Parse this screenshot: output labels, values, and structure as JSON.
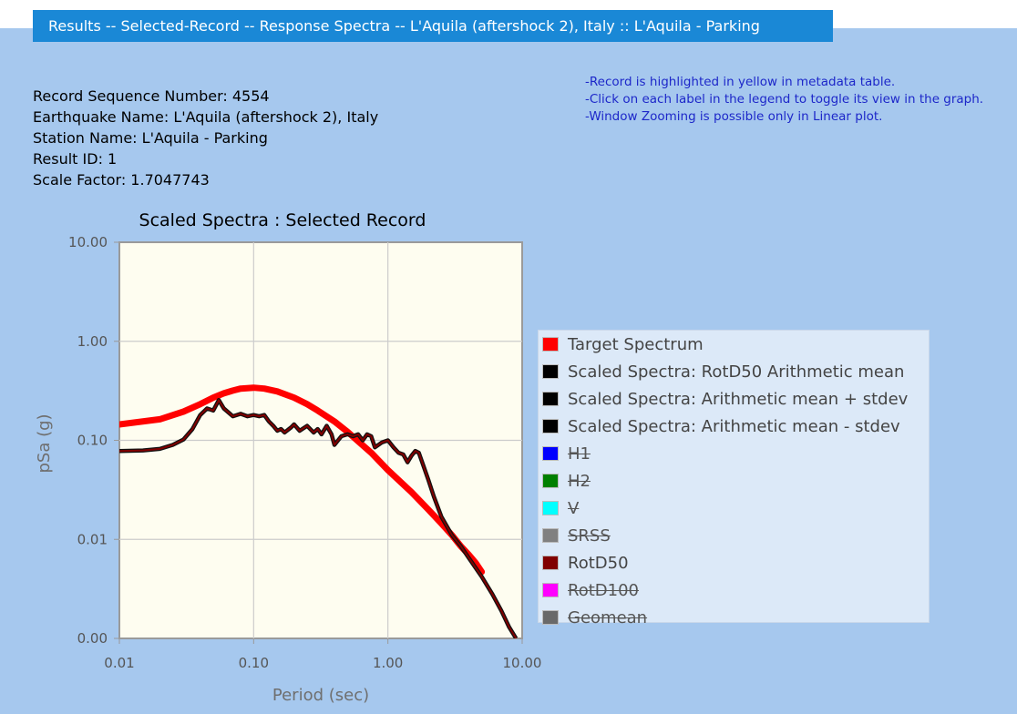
{
  "header": {
    "title": "Results -- Selected-Record -- Response Spectra -- L'Aquila (aftershock 2), Italy :: L'Aquila - Parking"
  },
  "info": [
    "Record Sequence Number: 4554",
    "Earthquake Name: L'Aquila (aftershock 2), Italy",
    "Station Name: L'Aquila - Parking",
    "Result ID: 1",
    "Scale Factor: 1.7047743"
  ],
  "notes": [
    "-Record is highlighted in yellow in metadata table.",
    "-Click on each label in the legend to toggle its view in the graph.",
    "-Window Zooming is possible only in Linear plot."
  ],
  "legend": [
    {
      "label": "Target Spectrum",
      "color": "#ff0000",
      "hidden": false
    },
    {
      "label": "Scaled Spectra: RotD50 Arithmetic mean",
      "color": "#000000",
      "hidden": false
    },
    {
      "label": "Scaled Spectra: Arithmetic mean + stdev",
      "color": "#000000",
      "hidden": false
    },
    {
      "label": "Scaled Spectra: Arithmetic mean - stdev",
      "color": "#000000",
      "hidden": false
    },
    {
      "label": "H1",
      "color": "#0000ff",
      "hidden": true
    },
    {
      "label": "H2",
      "color": "#008000",
      "hidden": true
    },
    {
      "label": "V",
      "color": "#00ffff",
      "hidden": true
    },
    {
      "label": "SRSS",
      "color": "#808080",
      "hidden": true
    },
    {
      "label": "RotD50",
      "color": "#800000",
      "hidden": false
    },
    {
      "label": "RotD100",
      "color": "#ff00ff",
      "hidden": true
    },
    {
      "label": "Geomean",
      "color": "#696969",
      "hidden": true
    }
  ],
  "chart_data": {
    "type": "line",
    "title": "Scaled Spectra : Selected Record",
    "xlabel": "Period (sec)",
    "ylabel": "pSa (g)",
    "x_scale": "log",
    "y_scale": "log",
    "xlim": [
      0.01,
      10
    ],
    "ylim": [
      0.001,
      10
    ],
    "x_ticks": [
      0.01,
      0.1,
      1,
      10
    ],
    "x_tick_labels": [
      "0.01",
      "0.10",
      "1.00",
      "10.00"
    ],
    "y_ticks": [
      0.001,
      0.01,
      0.1,
      1,
      10
    ],
    "y_tick_labels": [
      "0.00",
      "0.01",
      "0.10",
      "1.00",
      "10.00"
    ],
    "grid": true,
    "legend_position": "right",
    "series": [
      {
        "name": "Target Spectrum",
        "color": "#ff0000",
        "x": [
          0.01,
          0.02,
          0.03,
          0.04,
          0.05,
          0.06,
          0.07,
          0.08,
          0.1,
          0.12,
          0.15,
          0.2,
          0.25,
          0.3,
          0.4,
          0.5,
          0.6,
          0.75,
          1.0,
          1.5,
          2.0,
          2.5,
          3.0,
          3.5,
          4.0,
          4.5,
          5.0
        ],
        "y": [
          0.145,
          0.163,
          0.195,
          0.232,
          0.27,
          0.298,
          0.318,
          0.333,
          0.34,
          0.333,
          0.312,
          0.27,
          0.232,
          0.2,
          0.155,
          0.122,
          0.098,
          0.075,
          0.05,
          0.03,
          0.02,
          0.0145,
          0.011,
          0.0085,
          0.007,
          0.0058,
          0.0047
        ]
      },
      {
        "name": "RotD50",
        "color": "#800000",
        "x": [
          0.01,
          0.015,
          0.02,
          0.025,
          0.03,
          0.035,
          0.04,
          0.045,
          0.05,
          0.055,
          0.06,
          0.07,
          0.08,
          0.09,
          0.1,
          0.11,
          0.12,
          0.13,
          0.14,
          0.15,
          0.16,
          0.17,
          0.19,
          0.2,
          0.22,
          0.25,
          0.28,
          0.3,
          0.32,
          0.35,
          0.38,
          0.4,
          0.45,
          0.5,
          0.55,
          0.6,
          0.65,
          0.7,
          0.75,
          0.8,
          0.9,
          1.0,
          1.1,
          1.2,
          1.3,
          1.4,
          1.5,
          1.6,
          1.7,
          1.8,
          2.0,
          2.2,
          2.5,
          3.0,
          3.5,
          4.0,
          5.0,
          6.0,
          7.0,
          8.0,
          9.0
        ],
        "y": [
          0.078,
          0.079,
          0.082,
          0.09,
          0.102,
          0.13,
          0.18,
          0.21,
          0.2,
          0.255,
          0.21,
          0.175,
          0.185,
          0.175,
          0.18,
          0.175,
          0.18,
          0.155,
          0.14,
          0.125,
          0.13,
          0.12,
          0.135,
          0.145,
          0.125,
          0.14,
          0.12,
          0.13,
          0.115,
          0.14,
          0.115,
          0.09,
          0.11,
          0.115,
          0.11,
          0.115,
          0.1,
          0.115,
          0.11,
          0.085,
          0.095,
          0.1,
          0.085,
          0.075,
          0.072,
          0.06,
          0.07,
          0.078,
          0.075,
          0.06,
          0.04,
          0.027,
          0.017,
          0.011,
          0.0085,
          0.0065,
          0.0042,
          0.0028,
          0.0019,
          0.0013,
          0.001
        ]
      }
    ]
  }
}
